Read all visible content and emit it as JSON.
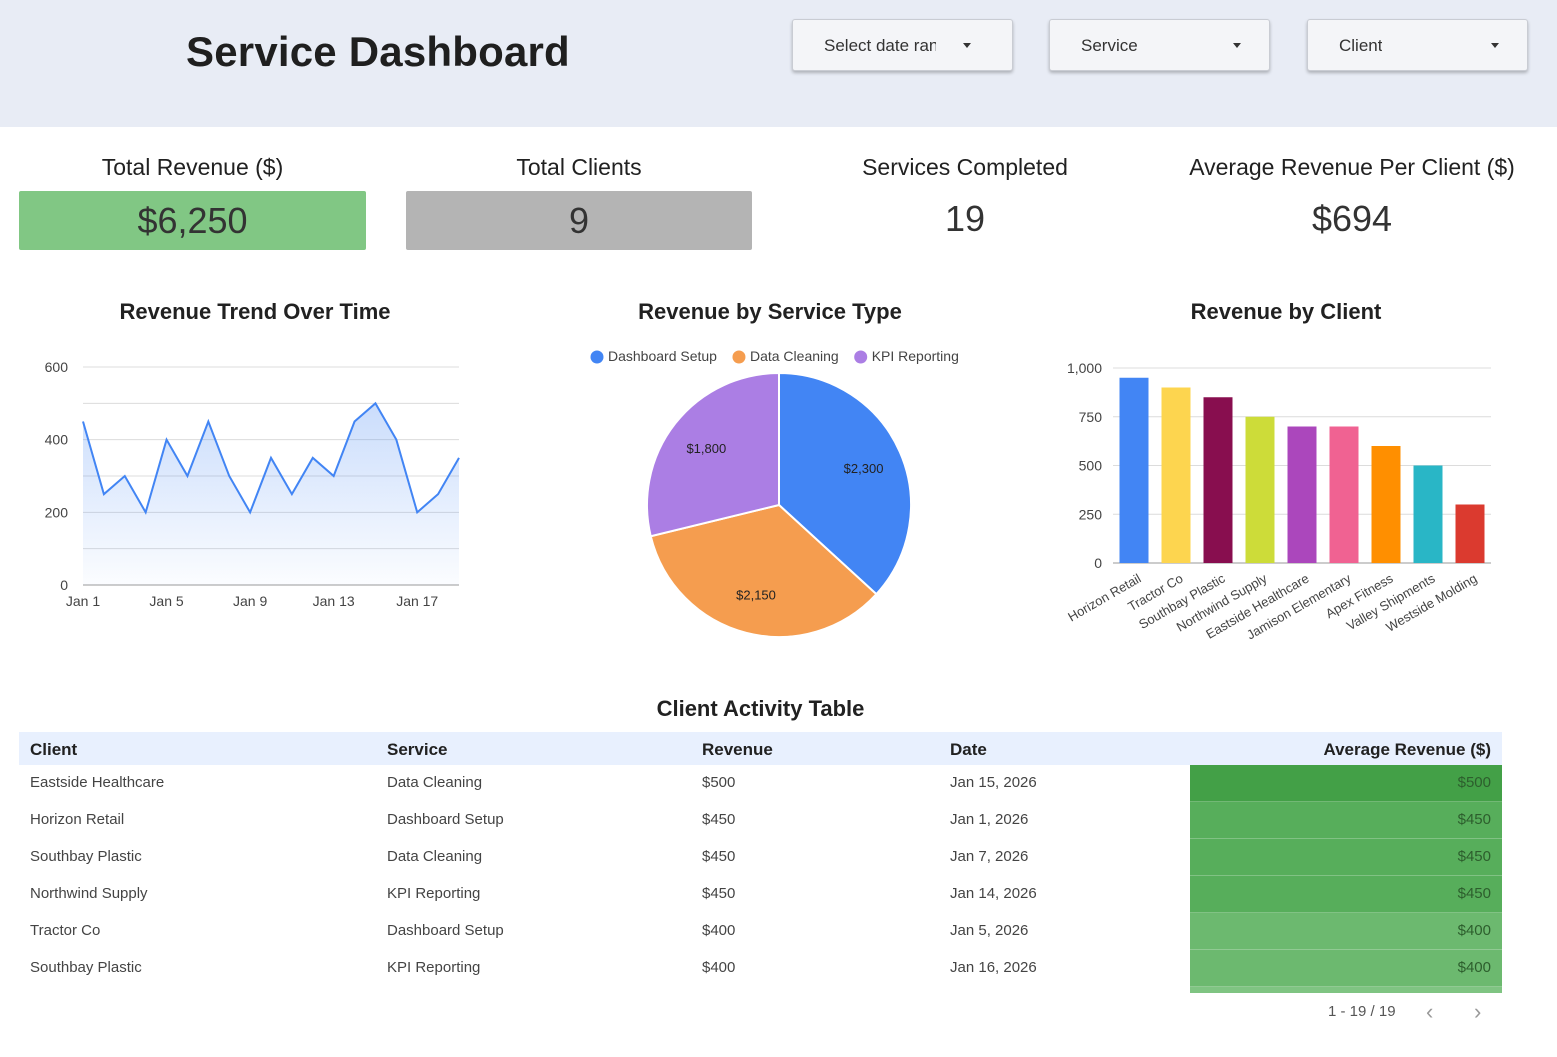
{
  "header": {
    "title": "Service Dashboard",
    "filters": [
      {
        "label": "Select date range"
      },
      {
        "label": "Service"
      },
      {
        "label": "Client"
      }
    ]
  },
  "kpis": [
    {
      "label": "Total Revenue ($)",
      "value": "$6,250",
      "color": "#81c784"
    },
    {
      "label": "Total Clients",
      "value": "9",
      "color": "#b4b4b4"
    },
    {
      "label": "Services Completed",
      "value": "19"
    },
    {
      "label": "Average Revenue Per Client ($)",
      "value": "$694"
    }
  ],
  "chart_data": [
    {
      "type": "area",
      "title": "Revenue Trend Over Time",
      "x": [
        "Jan 1",
        "Jan 2",
        "Jan 3",
        "Jan 4",
        "Jan 5",
        "Jan 6",
        "Jan 7",
        "Jan 8",
        "Jan 9",
        "Jan 10",
        "Jan 11",
        "Jan 12",
        "Jan 13",
        "Jan 14",
        "Jan 15",
        "Jan 16",
        "Jan 17",
        "Jan 18",
        "Jan 19"
      ],
      "values": [
        450,
        250,
        300,
        200,
        400,
        300,
        450,
        300,
        200,
        350,
        250,
        350,
        300,
        450,
        500,
        400,
        200,
        250,
        350
      ],
      "x_tick_labels": [
        "Jan 1",
        "Jan 5",
        "Jan 9",
        "Jan 13",
        "Jan 17"
      ],
      "y_ticks": [
        "0",
        "200",
        "400",
        "600"
      ],
      "ylim": [
        0,
        600
      ],
      "grid": true,
      "color": "#4285f4"
    },
    {
      "type": "pie",
      "title": "Revenue by Service Type",
      "legend_position": "top",
      "slices": [
        {
          "name": "Dashboard Setup",
          "value": 2300,
          "label": "$2,300",
          "color": "#4285f4"
        },
        {
          "name": "Data Cleaning",
          "value": 2150,
          "label": "$2,150",
          "color": "#f59d4f"
        },
        {
          "name": "KPI Reporting",
          "value": 1800,
          "label": "$1,800",
          "color": "#ab7ee4"
        }
      ]
    },
    {
      "type": "bar",
      "title": "Revenue by Client",
      "categories": [
        "Horizon Retail",
        "Tractor Co",
        "Southbay Plastic",
        "Northwind Supply",
        "Eastside Healthcare",
        "Jamison Elementary",
        "Apex Fitness",
        "Valley Shipments",
        "Westside Molding"
      ],
      "values": [
        950,
        900,
        850,
        750,
        700,
        700,
        600,
        500,
        300
      ],
      "colors": [
        "#4285f4",
        "#fdd54f",
        "#880e4f",
        "#cddc39",
        "#ab47bc",
        "#f06292",
        "#ff8f00",
        "#29b6c6",
        "#db3a2f"
      ],
      "y_ticks": [
        "0",
        "250",
        "500",
        "750",
        "1,000"
      ],
      "ylim": [
        0,
        1000
      ],
      "grid": true
    }
  ],
  "table": {
    "title": "Client Activity Table",
    "columns": [
      "Client",
      "Service",
      "Revenue",
      "Date",
      "Average Revenue ($)"
    ],
    "rows": [
      {
        "client": "Eastside Healthcare",
        "service": "Data Cleaning",
        "revenue": "$500",
        "date": "Jan 15, 2026",
        "avg": "$500",
        "avg_value": 500
      },
      {
        "client": "Horizon Retail",
        "service": "Dashboard Setup",
        "revenue": "$450",
        "date": "Jan 1, 2026",
        "avg": "$450",
        "avg_value": 450
      },
      {
        "client": "Southbay Plastic",
        "service": "Data Cleaning",
        "revenue": "$450",
        "date": "Jan 7, 2026",
        "avg": "$450",
        "avg_value": 450
      },
      {
        "client": "Northwind Supply",
        "service": "KPI Reporting",
        "revenue": "$450",
        "date": "Jan 14, 2026",
        "avg": "$450",
        "avg_value": 450
      },
      {
        "client": "Tractor Co",
        "service": "Dashboard Setup",
        "revenue": "$400",
        "date": "Jan 5, 2026",
        "avg": "$400",
        "avg_value": 400
      },
      {
        "client": "Southbay Plastic",
        "service": "KPI Reporting",
        "revenue": "$400",
        "date": "Jan 16, 2026",
        "avg": "$400",
        "avg_value": 400
      }
    ],
    "heat_colors": {
      "500": "#43a047",
      "450": "#57ae5b",
      "400": "#6cb96f"
    },
    "pagination": {
      "text": "1 - 19 / 19",
      "prev": "‹",
      "next": "›"
    }
  }
}
